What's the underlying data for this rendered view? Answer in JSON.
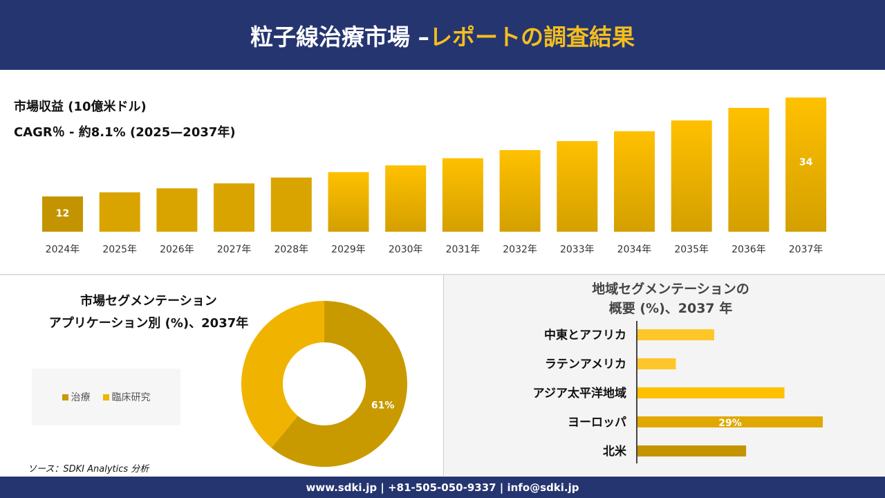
{
  "header": {
    "title_main": "粒子線治療市場 –",
    "title_accent": "レポートの調査結果"
  },
  "colors": {
    "navy": "#253570",
    "accent": "#F5BE1E",
    "gold_dark": "#C49400",
    "gold": "#E0A800",
    "gold_light": "#FFC000"
  },
  "chart_data": [
    {
      "type": "bar",
      "title": "市場収益 (10億米ドル)",
      "subtitle": "CAGR％ - 約8.1% (2025—2037年)",
      "categories": [
        "2024年",
        "2025年",
        "2026年",
        "2027年",
        "2028年",
        "2029年",
        "2030年",
        "2031年",
        "2032年",
        "2033年",
        "2034年",
        "2035年",
        "2036年",
        "2037年"
      ],
      "values": [
        12,
        12.9,
        13.8,
        14.9,
        16.2,
        17.4,
        18.9,
        20.5,
        22.3,
        24.3,
        26.5,
        28.9,
        31.7,
        34
      ],
      "data_labels": {
        "0": "12",
        "13": "34"
      }
    },
    {
      "type": "pie",
      "title_line1": "市場セグメンテーション",
      "title_line2": "アプリケーション別 (%)、2037年",
      "slices": [
        {
          "name": "治療",
          "value": 61,
          "color": "#C99A00",
          "label": "61%"
        },
        {
          "name": "臨床研究",
          "value": 39,
          "color": "#F0B400"
        }
      ],
      "legend": "left"
    },
    {
      "type": "bar",
      "orientation": "horizontal",
      "title_line1": "地域セグメンテーションの",
      "title_line2": "概要 (%)、2037 年",
      "categories": [
        "中東とアフリカ",
        "ラテンアメリカ",
        "アジア太平洋地域",
        "ヨーロッパ",
        "北米"
      ],
      "values": [
        12,
        6,
        23,
        29,
        17
      ],
      "colors": [
        "#FFC629",
        "#FFC629",
        "#FFC000",
        "#E0A800",
        "#C49400"
      ],
      "data_labels": {
        "3": "29%"
      }
    }
  ],
  "source": "ソース：SDKI Analytics 分析",
  "footer": "www.sdki.jp | +81-505-050-9337 | info@sdki.jp"
}
